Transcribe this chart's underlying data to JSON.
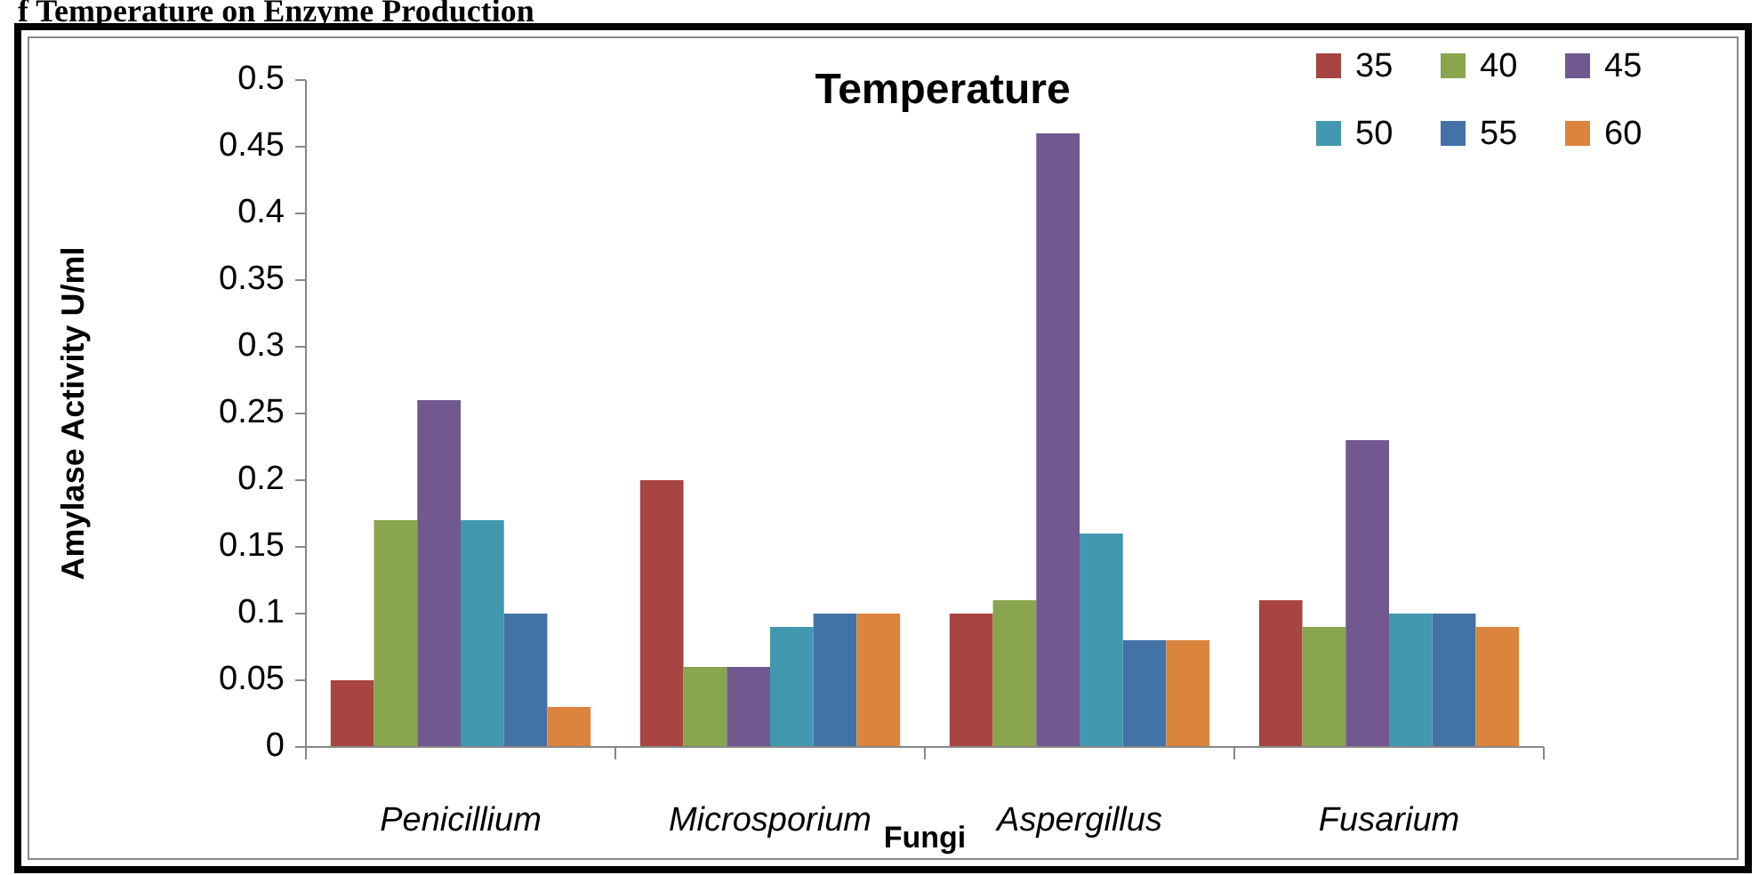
{
  "chart_data": {
    "type": "bar",
    "title": "f Temperature on Enzyme Production",
    "subtitle": "Temperature",
    "xlabel": "Fungi",
    "ylabel": "Amylase Activity U/ml",
    "categories": [
      "Penicillium",
      "Microsporium",
      "Aspergillus",
      "Fusarium"
    ],
    "series": [
      {
        "name": "35",
        "color": "#a84442",
        "values": [
          0.05,
          0.2,
          0.1,
          0.11
        ]
      },
      {
        "name": "40",
        "color": "#89a54e",
        "values": [
          0.17,
          0.06,
          0.11,
          0.09
        ]
      },
      {
        "name": "45",
        "color": "#71588f",
        "values": [
          0.26,
          0.06,
          0.46,
          0.23
        ]
      },
      {
        "name": "50",
        "color": "#4198af",
        "values": [
          0.17,
          0.09,
          0.16,
          0.1
        ]
      },
      {
        "name": "55",
        "color": "#4372a7",
        "values": [
          0.1,
          0.1,
          0.08,
          0.1
        ]
      },
      {
        "name": "60",
        "color": "#db843d",
        "values": [
          0.03,
          0.1,
          0.08,
          0.09
        ]
      }
    ],
    "ylim": [
      0,
      0.5
    ],
    "yticks": [
      0,
      0.05,
      0.1,
      0.15,
      0.2,
      0.25,
      0.3,
      0.35,
      0.4,
      0.45,
      0.5
    ],
    "grid": false,
    "legend": "top right"
  }
}
